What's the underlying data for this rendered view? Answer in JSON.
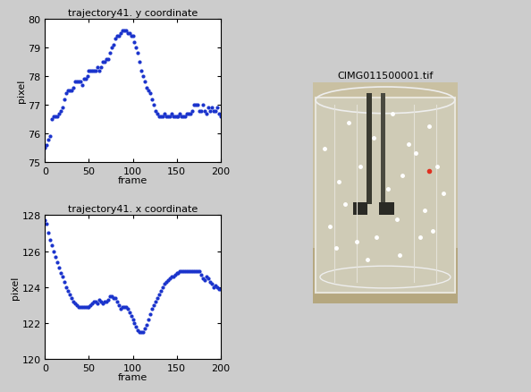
{
  "chart_data": [
    {
      "type": "scatter",
      "title": "trajectory41. y coordinate",
      "x_label": "frame",
      "y_label": "pixel",
      "color": "#1a33cc",
      "marker": "point",
      "xlim": [
        0,
        200
      ],
      "xticks": [
        0,
        50,
        100,
        150,
        200
      ],
      "ylim": [
        75,
        80
      ],
      "yticks": [
        75,
        76,
        77,
        78,
        79,
        80
      ],
      "x": [
        0,
        2,
        4,
        6,
        8,
        10,
        12,
        14,
        16,
        18,
        20,
        22,
        24,
        26,
        28,
        30,
        32,
        34,
        36,
        38,
        40,
        42,
        44,
        46,
        48,
        50,
        52,
        54,
        56,
        58,
        60,
        62,
        64,
        66,
        68,
        70,
        72,
        74,
        76,
        78,
        80,
        82,
        84,
        86,
        88,
        90,
        92,
        94,
        96,
        98,
        100,
        102,
        104,
        106,
        108,
        110,
        112,
        114,
        116,
        118,
        120,
        122,
        124,
        126,
        128,
        130,
        132,
        134,
        136,
        138,
        140,
        142,
        144,
        146,
        148,
        150,
        152,
        154,
        156,
        158,
        160,
        162,
        164,
        166,
        168,
        170,
        172,
        174,
        176,
        178,
        180,
        182,
        184,
        186,
        188,
        190,
        192,
        194,
        196,
        198,
        200
      ],
      "values": [
        75.5,
        75.6,
        75.8,
        75.9,
        76.5,
        76.6,
        76.6,
        76.6,
        76.7,
        76.8,
        76.9,
        77.2,
        77.4,
        77.5,
        77.5,
        77.5,
        77.6,
        77.8,
        77.8,
        77.8,
        77.8,
        77.7,
        77.9,
        77.9,
        78.0,
        78.2,
        78.2,
        78.2,
        78.2,
        78.2,
        78.3,
        78.2,
        78.3,
        78.5,
        78.5,
        78.6,
        78.6,
        78.8,
        79.0,
        79.1,
        79.3,
        79.4,
        79.4,
        79.5,
        79.6,
        79.6,
        79.6,
        79.5,
        79.5,
        79.4,
        79.4,
        79.2,
        79.0,
        78.8,
        78.5,
        78.2,
        78.0,
        77.8,
        77.6,
        77.5,
        77.4,
        77.2,
        77.0,
        76.8,
        76.7,
        76.6,
        76.6,
        76.6,
        76.7,
        76.6,
        76.6,
        76.6,
        76.7,
        76.6,
        76.6,
        76.6,
        76.6,
        76.7,
        76.6,
        76.6,
        76.6,
        76.7,
        76.7,
        76.7,
        76.8,
        77.0,
        77.0,
        77.0,
        76.8,
        76.8,
        77.0,
        76.8,
        76.7,
        76.9,
        76.8,
        76.9,
        76.8,
        76.8,
        76.9,
        76.7,
        76.6
      ]
    },
    {
      "type": "scatter",
      "title": "trajectory41. x coordinate",
      "x_label": "frame",
      "y_label": "pixel",
      "color": "#1a33cc",
      "marker": "point",
      "xlim": [
        0,
        200
      ],
      "xticks": [
        0,
        50,
        100,
        150,
        200
      ],
      "ylim": [
        120,
        128
      ],
      "yticks": [
        120,
        122,
        124,
        126,
        128
      ],
      "x": [
        0,
        2,
        4,
        6,
        8,
        10,
        12,
        14,
        16,
        18,
        20,
        22,
        24,
        26,
        28,
        30,
        32,
        34,
        36,
        38,
        40,
        42,
        44,
        46,
        48,
        50,
        52,
        54,
        56,
        58,
        60,
        62,
        64,
        66,
        68,
        70,
        72,
        74,
        76,
        78,
        80,
        82,
        84,
        86,
        88,
        90,
        92,
        94,
        96,
        98,
        100,
        102,
        104,
        106,
        108,
        110,
        112,
        114,
        116,
        118,
        120,
        122,
        124,
        126,
        128,
        130,
        132,
        134,
        136,
        138,
        140,
        142,
        144,
        146,
        148,
        150,
        152,
        154,
        156,
        158,
        160,
        162,
        164,
        166,
        168,
        170,
        172,
        174,
        176,
        178,
        180,
        182,
        184,
        186,
        188,
        190,
        192,
        194,
        196,
        198,
        200
      ],
      "values": [
        127.7,
        127.5,
        127.0,
        126.6,
        126.3,
        126.0,
        125.7,
        125.4,
        125.1,
        124.8,
        124.6,
        124.3,
        124.0,
        123.8,
        123.6,
        123.4,
        123.2,
        123.1,
        123.0,
        122.9,
        122.9,
        122.9,
        122.9,
        122.9,
        122.9,
        122.9,
        123.0,
        123.1,
        123.2,
        123.2,
        123.1,
        123.3,
        123.2,
        123.1,
        123.2,
        123.2,
        123.3,
        123.5,
        123.5,
        123.4,
        123.4,
        123.2,
        123.0,
        122.8,
        122.9,
        122.9,
        122.9,
        122.8,
        122.6,
        122.4,
        122.2,
        122.0,
        121.8,
        121.6,
        121.5,
        121.5,
        121.5,
        121.7,
        121.9,
        122.2,
        122.5,
        122.8,
        123.0,
        123.2,
        123.4,
        123.6,
        123.8,
        124.0,
        124.2,
        124.3,
        124.4,
        124.5,
        124.6,
        124.6,
        124.7,
        124.8,
        124.8,
        124.9,
        124.9,
        124.9,
        124.9,
        124.9,
        124.9,
        124.9,
        124.9,
        124.9,
        124.9,
        124.9,
        124.9,
        124.7,
        124.5,
        124.4,
        124.6,
        124.5,
        124.3,
        124.2,
        124.0,
        124.1,
        124.0,
        123.9,
        123.9
      ]
    }
  ],
  "image": {
    "title": "CIMG011500001.tif"
  }
}
